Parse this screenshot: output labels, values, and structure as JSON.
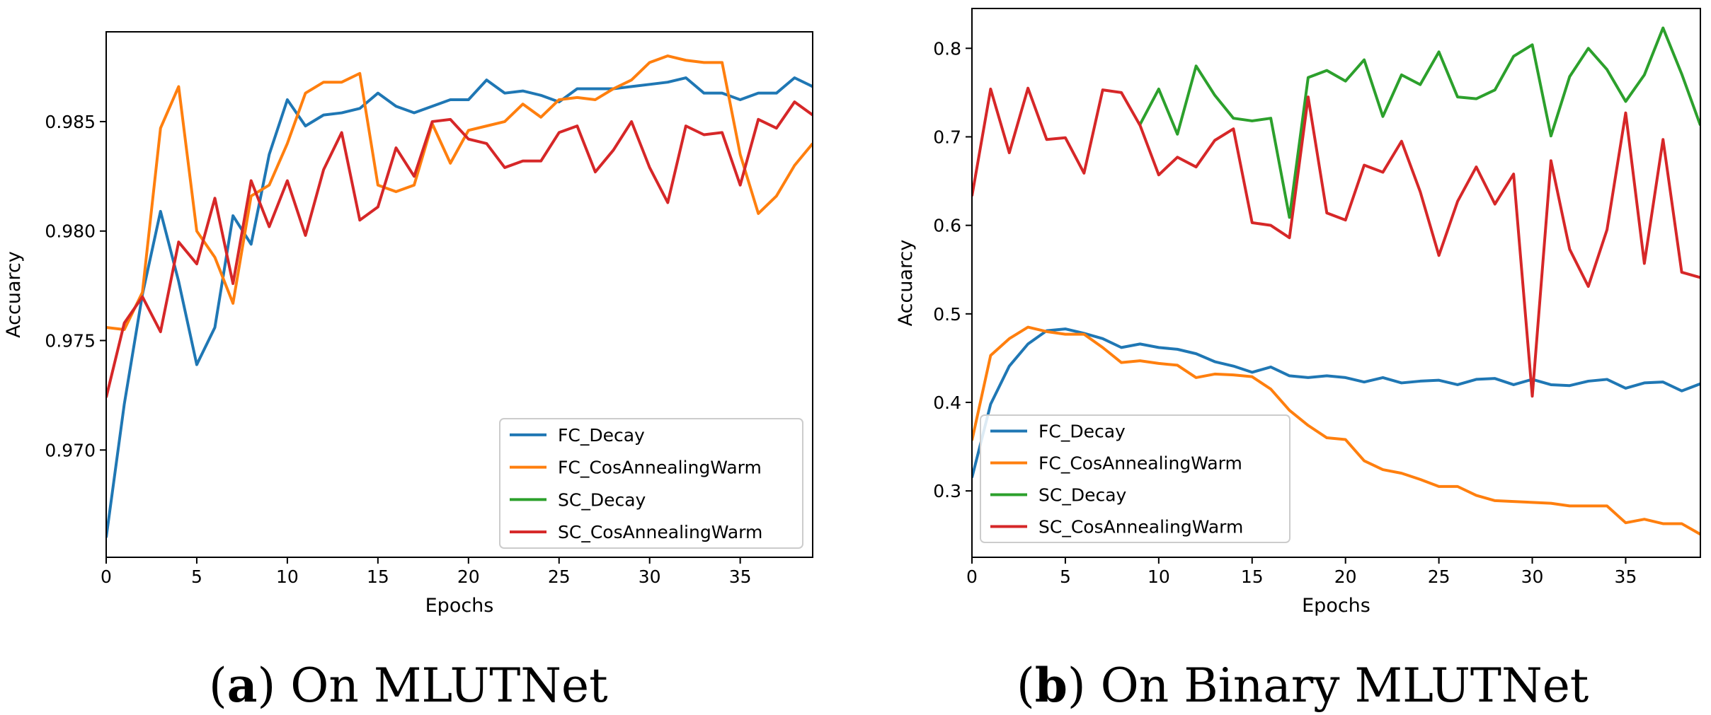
{
  "colors": {
    "FC_Decay": "#1f77b4",
    "FC_CosAnnealingWarm": "#ff7f0e",
    "SC_Decay": "#2ca02c",
    "SC_CosAnnealingWarm": "#d62728"
  },
  "captions": [
    {
      "letter": "a",
      "open": "(",
      "close": ")",
      "text": " On MLUTNet"
    },
    {
      "letter": "b",
      "open": "(",
      "close": ")",
      "text": " On Binary MLUTNet"
    }
  ],
  "chart_data": [
    {
      "id": "a",
      "type": "line",
      "title": "",
      "xlabel": "Epochs",
      "ylabel": "Accuarcy",
      "xlim": [
        0,
        39
      ],
      "ylim": [
        0.9651,
        0.9891
      ],
      "xticks": [
        0,
        5,
        10,
        15,
        20,
        25,
        30,
        35
      ],
      "xtick_labels": [
        "0",
        "5",
        "10",
        "15",
        "20",
        "25",
        "30",
        "35"
      ],
      "yticks": [
        0.97,
        0.975,
        0.98,
        0.985
      ],
      "ytick_labels": [
        "0.970",
        "0.975",
        "0.980",
        "0.985"
      ],
      "legend_position": "lower right",
      "series": [
        {
          "name": "FC_Decay",
          "values": [
            0.966,
            0.9721,
            0.9771,
            0.9809,
            0.9777,
            0.9739,
            0.9756,
            0.9807,
            0.9794,
            0.9835,
            0.986,
            0.9848,
            0.9853,
            0.9854,
            0.9856,
            0.9863,
            0.9857,
            0.9854,
            0.9857,
            0.986,
            0.986,
            0.9869,
            0.9863,
            0.9864,
            0.9862,
            0.9859,
            0.9865,
            0.9865,
            0.9865,
            0.9866,
            0.9867,
            0.9868,
            0.987,
            0.9863,
            0.9863,
            0.986,
            0.9863,
            0.9863,
            0.987,
            0.9866
          ]
        },
        {
          "name": "FC_CosAnnealingWarm",
          "values": [
            0.9756,
            0.9755,
            0.9772,
            0.9847,
            0.9866,
            0.98,
            0.9788,
            0.9767,
            0.9816,
            0.9821,
            0.984,
            0.9863,
            0.9868,
            0.9868,
            0.9872,
            0.9821,
            0.9818,
            0.9821,
            0.9849,
            0.9831,
            0.9846,
            0.9848,
            0.985,
            0.9858,
            0.9852,
            0.986,
            0.9861,
            0.986,
            0.9865,
            0.9869,
            0.9877,
            0.988,
            0.9878,
            0.9877,
            0.9877,
            0.9835,
            0.9808,
            0.9816,
            0.983,
            0.984
          ]
        },
        {
          "name": "SC_CosAnnealingWarm",
          "values": [
            0.9724,
            0.9758,
            0.977,
            0.9754,
            0.9795,
            0.9785,
            0.9815,
            0.9776,
            0.9823,
            0.9802,
            0.9823,
            0.9798,
            0.9828,
            0.9845,
            0.9805,
            0.9811,
            0.9838,
            0.9825,
            0.985,
            0.9851,
            0.9842,
            0.984,
            0.9829,
            0.9832,
            0.9832,
            0.9845,
            0.9848,
            0.9827,
            0.9837,
            0.985,
            0.9829,
            0.9813,
            0.9848,
            0.9844,
            0.9845,
            0.9821,
            0.9851,
            0.9847,
            0.9859,
            0.9853
          ]
        }
      ]
    },
    {
      "id": "b",
      "type": "line",
      "title": "",
      "xlabel": "Epochs",
      "ylabel": "Accuarcy",
      "xlim": [
        0,
        39
      ],
      "ylim": [
        0.225,
        0.845
      ],
      "xticks": [
        0,
        5,
        10,
        15,
        20,
        25,
        30,
        35
      ],
      "xtick_labels": [
        "0",
        "5",
        "10",
        "15",
        "20",
        "25",
        "30",
        "35"
      ],
      "yticks": [
        0.3,
        0.4,
        0.5,
        0.6,
        0.7,
        0.8
      ],
      "ytick_labels": [
        "0.3",
        "0.4",
        "0.5",
        "0.6",
        "0.7",
        "0.8"
      ],
      "legend_position": "lower left",
      "series": [
        {
          "name": "FC_Decay",
          "values": [
            0.315,
            0.398,
            0.441,
            0.466,
            0.481,
            0.483,
            0.478,
            0.472,
            0.462,
            0.466,
            0.462,
            0.46,
            0.455,
            0.446,
            0.441,
            0.434,
            0.44,
            0.43,
            0.428,
            0.43,
            0.428,
            0.423,
            0.428,
            0.422,
            0.424,
            0.425,
            0.42,
            0.426,
            0.427,
            0.42,
            0.426,
            0.42,
            0.419,
            0.424,
            0.426,
            0.416,
            0.422,
            0.423,
            0.413,
            0.421
          ]
        },
        {
          "name": "FC_CosAnnealingWarm",
          "values": [
            0.357,
            0.453,
            0.472,
            0.485,
            0.48,
            0.477,
            0.477,
            0.462,
            0.445,
            0.447,
            0.444,
            0.442,
            0.428,
            0.432,
            0.431,
            0.429,
            0.415,
            0.391,
            0.374,
            0.36,
            0.358,
            0.334,
            0.324,
            0.32,
            0.313,
            0.305,
            0.305,
            0.295,
            0.289,
            0.288,
            0.287,
            0.286,
            0.283,
            0.283,
            0.283,
            0.264,
            0.268,
            0.263,
            0.263,
            0.251
          ]
        },
        {
          "name": "SC_Decay",
          "values": [
            null,
            null,
            null,
            null,
            null,
            null,
            null,
            null,
            null,
            0.714,
            0.754,
            0.703,
            0.78,
            0.747,
            0.721,
            0.718,
            0.721,
            0.609,
            0.767,
            0.775,
            0.763,
            0.787,
            0.723,
            0.77,
            0.759,
            0.796,
            0.745,
            0.743,
            0.753,
            0.791,
            0.804,
            0.701,
            0.768,
            0.8,
            0.776,
            0.74,
            0.77,
            0.823,
            0.771,
            0.713
          ]
        },
        {
          "name": "SC_CosAnnealingWarm",
          "values": [
            0.633,
            0.754,
            0.682,
            0.755,
            0.697,
            0.699,
            0.659,
            0.753,
            0.75,
            0.713,
            0.657,
            0.677,
            0.666,
            0.696,
            0.709,
            0.603,
            0.6,
            0.586,
            0.745,
            0.614,
            0.606,
            0.668,
            0.66,
            0.695,
            0.638,
            0.566,
            0.627,
            0.666,
            0.624,
            0.658,
            0.407,
            0.673,
            0.573,
            0.531,
            0.595,
            0.727,
            0.557,
            0.697,
            0.547,
            0.541
          ]
        }
      ],
      "legend_order": [
        "FC_Decay",
        "FC_CosAnnealingWarm",
        "SC_Decay",
        "SC_CosAnnealingWarm"
      ]
    }
  ]
}
